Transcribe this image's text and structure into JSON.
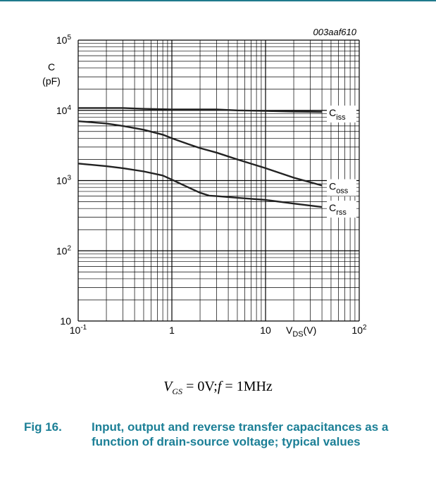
{
  "figure_id": "003aaf610",
  "condition": {
    "vgs_symbol": "V",
    "vgs_sub": "GS",
    "vgs_value": " = 0V;",
    "f_symbol": "f",
    "f_value": " = 1MHz"
  },
  "caption": {
    "number": "Fig 16.",
    "text": "Input, output and reverse transfer capacitances as a function of drain-source voltage; typical values"
  },
  "colors": {
    "caption": "#1b7f96",
    "rule": "#1f7a8c",
    "curve": "#222222",
    "grid": "#000000"
  },
  "chart_data": {
    "type": "line",
    "x_scale": "log",
    "y_scale": "log",
    "xlim": [
      0.1,
      100
    ],
    "ylim": [
      10,
      100000
    ],
    "grid": true,
    "x_ticks": [
      {
        "value": 0.1,
        "base": "10",
        "exp": "-1"
      },
      {
        "value": 1,
        "base": "1",
        "exp": ""
      },
      {
        "value": 10,
        "base": "10",
        "exp": ""
      },
      {
        "value": 100,
        "base": "10",
        "exp": "2"
      }
    ],
    "y_ticks": [
      {
        "value": 10,
        "base": "10",
        "exp": ""
      },
      {
        "value": 100,
        "base": "10",
        "exp": "2"
      },
      {
        "value": 1000,
        "base": "10",
        "exp": "3"
      },
      {
        "value": 10000,
        "base": "10",
        "exp": "4"
      },
      {
        "value": 100000,
        "base": "10",
        "exp": "5"
      }
    ],
    "ylabel": {
      "symbol": "C",
      "unit": "(pF)"
    },
    "xlabel": {
      "symbol": "V",
      "sub": "DS",
      "unit": "(V)"
    },
    "series": [
      {
        "name": "C",
        "name_sub": "iss",
        "x": [
          0.1,
          0.2,
          0.3,
          0.5,
          1,
          2,
          3,
          5,
          10,
          20,
          40
        ],
        "y": [
          10800,
          10800,
          10800,
          10500,
          10300,
          10300,
          10300,
          10000,
          9800,
          9600,
          9500
        ]
      },
      {
        "name": "C",
        "name_sub": "oss",
        "x": [
          0.1,
          0.2,
          0.3,
          0.5,
          0.8,
          1,
          1.5,
          2,
          3,
          5,
          10,
          20,
          40
        ],
        "y": [
          7000,
          6500,
          6000,
          5300,
          4500,
          4000,
          3300,
          2900,
          2500,
          2000,
          1500,
          1100,
          850
        ]
      },
      {
        "name": "C",
        "name_sub": "rss",
        "x": [
          0.1,
          0.2,
          0.3,
          0.5,
          0.8,
          1,
          1.5,
          2,
          2.5,
          3,
          5,
          10,
          20,
          40
        ],
        "y": [
          1750,
          1600,
          1500,
          1350,
          1180,
          1030,
          800,
          670,
          610,
          600,
          570,
          530,
          470,
          420
        ]
      }
    ]
  }
}
